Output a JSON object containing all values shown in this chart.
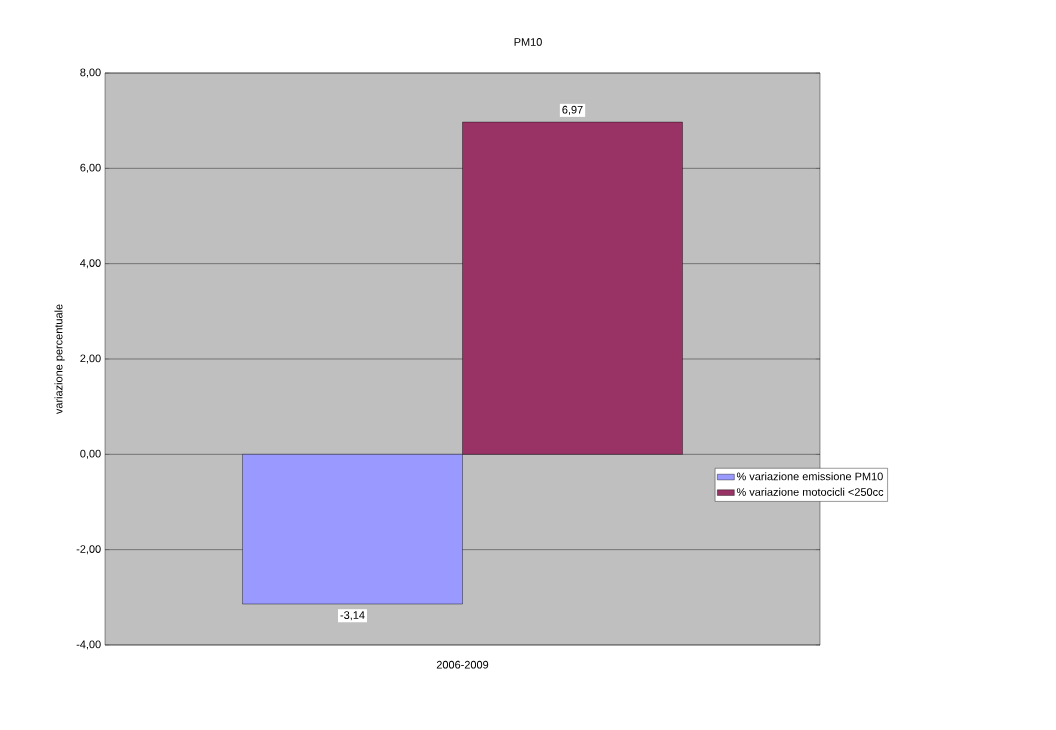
{
  "chart_data": {
    "type": "bar",
    "title": "PM10",
    "ylabel": "variazione percentuale",
    "categories": [
      "2006-2009"
    ],
    "series": [
      {
        "name": "% variazione emissione PM10",
        "color": "#9999ff",
        "values": [
          -3.14
        ],
        "value_labels": [
          "-3,14"
        ]
      },
      {
        "name": "% variazione motocicli <250cc",
        "color": "#993366",
        "values": [
          6.97
        ],
        "value_labels": [
          "6,97"
        ]
      }
    ],
    "ylim": [
      -4,
      8
    ],
    "yticks": [
      {
        "value": -4,
        "label": "-4,00"
      },
      {
        "value": -2,
        "label": "-2,00"
      },
      {
        "value": 0,
        "label": "0,00"
      },
      {
        "value": 2,
        "label": "2,00"
      },
      {
        "value": 4,
        "label": "4,00"
      },
      {
        "value": 6,
        "label": "6,00"
      },
      {
        "value": 8,
        "label": "8,00"
      }
    ],
    "grid": "y",
    "legend": "right"
  }
}
